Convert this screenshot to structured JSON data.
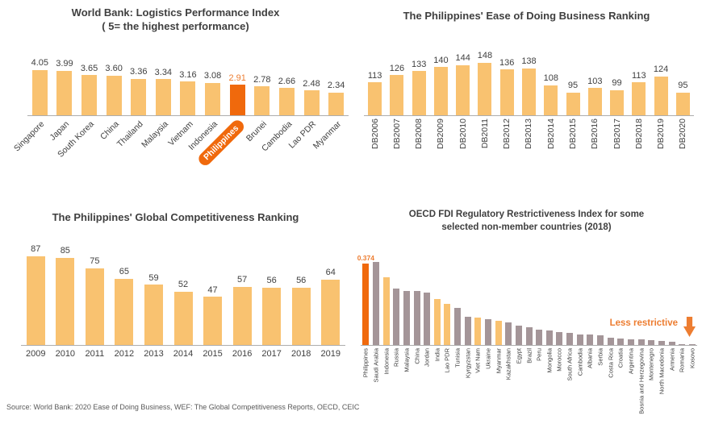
{
  "page": {
    "source_note": "Source: World Bank: 2020 Ease of Doing Business, WEF: The Global Competitiveness Reports, OECD, CEIC"
  },
  "colors": {
    "bar_light": "#F9C270",
    "bar_highlight": "#F0690C",
    "bar_gray": "#A49598",
    "accent_text": "#ED7D31",
    "text": "#404040",
    "axis": "#ADADAD"
  },
  "chart_data": [
    {
      "id": "lpi",
      "type": "bar",
      "title": "World Bank: Logistics Performance Index",
      "subtitle": "( 5= the highest performance)",
      "categories": [
        "Singapore",
        "Japan",
        "South Korea",
        "China",
        "Thailand",
        "Malaysia",
        "Vietnam",
        "Indonesia",
        "Philippines",
        "Brunei",
        "Cambodia",
        "Lao PDR",
        "Myanmar"
      ],
      "values": [
        4.05,
        3.99,
        3.65,
        3.6,
        3.36,
        3.34,
        3.16,
        3.08,
        2.91,
        2.78,
        2.66,
        2.48,
        2.34
      ],
      "value_format": "2dp",
      "show_value_labels": true,
      "highlight_index": 8,
      "highlight_style": "pill",
      "label_mode": "diag",
      "ylim": [
        0,
        5
      ],
      "grid": false,
      "legend": "none"
    },
    {
      "id": "edb",
      "type": "bar",
      "title": "The Philippines' Ease of Doing Business Ranking",
      "categories": [
        "DB2006",
        "DB2007",
        "DB2008",
        "DB2009",
        "DB2010",
        "DB2011",
        "DB2012",
        "DB2013",
        "DB2014",
        "DB2015",
        "DB2016",
        "DB2017",
        "DB2018",
        "DB2019",
        "DB2020"
      ],
      "values": [
        113,
        126,
        133,
        140,
        144,
        148,
        136,
        138,
        108,
        95,
        103,
        99,
        113,
        124,
        95
      ],
      "show_value_labels": true,
      "label_mode": "vert",
      "grid": false,
      "legend": "none"
    },
    {
      "id": "gcr",
      "type": "bar",
      "title": "The Philippines' Global Competitiveness Ranking",
      "categories": [
        "2009",
        "2010",
        "2011",
        "2012",
        "2013",
        "2014",
        "2015",
        "2016",
        "2017",
        "2018",
        "2019"
      ],
      "values": [
        87,
        85,
        75,
        65,
        59,
        52,
        47,
        57,
        56,
        56,
        64
      ],
      "show_value_labels": true,
      "label_mode": "horiz",
      "grid": false,
      "legend": "none"
    },
    {
      "id": "fdi",
      "type": "bar",
      "title": "OECD FDI Regulatory Restrictiveness Index for some",
      "title_line2": "selected non-member countries (2018)",
      "categories": [
        "Philippines",
        "Saudi Arabia",
        "Indonesia",
        "Russia",
        "Malaysia",
        "China",
        "Jordan",
        "India",
        "Lao PDR",
        "Tunisia",
        "Kyrgyzstan",
        "Viet Nam",
        "Ukraine",
        "Myanmar",
        "Kazakhstan",
        "Egypt",
        "Brazil",
        "Peru",
        "Mongolia",
        "Morocco",
        "South Africa",
        "Cambodia",
        "Albania",
        "Serbia",
        "Costa Rica",
        "Croatia",
        "Argentina",
        "Bosnia and Herzegovina",
        "Montenegro",
        "North Macedonia",
        "Armenia",
        "Romania",
        "Kosovo"
      ],
      "values": [
        0.374,
        0.38,
        0.31,
        0.26,
        0.25,
        0.25,
        0.24,
        0.21,
        0.19,
        0.17,
        0.13,
        0.125,
        0.12,
        0.11,
        0.105,
        0.09,
        0.08,
        0.07,
        0.065,
        0.06,
        0.055,
        0.05,
        0.048,
        0.043,
        0.033,
        0.028,
        0.027,
        0.026,
        0.023,
        0.02,
        0.014,
        0.005,
        0.002
      ],
      "bar_color_keys": [
        "highlight",
        "gray",
        "light",
        "gray",
        "gray",
        "gray",
        "gray",
        "light",
        "light",
        "gray",
        "gray",
        "light",
        "gray",
        "light",
        "gray",
        "gray",
        "gray",
        "gray",
        "gray",
        "gray",
        "gray",
        "gray",
        "gray",
        "gray",
        "gray",
        "gray",
        "gray",
        "gray",
        "gray",
        "gray",
        "gray",
        "gray",
        "gray"
      ],
      "show_value_labels": false,
      "data_label": {
        "index": 0,
        "text": "0.374"
      },
      "annotation": {
        "text": "Less restrictive",
        "icon": "down-arrow"
      },
      "label_mode": "vert",
      "grid": false,
      "legend": "none"
    }
  ]
}
